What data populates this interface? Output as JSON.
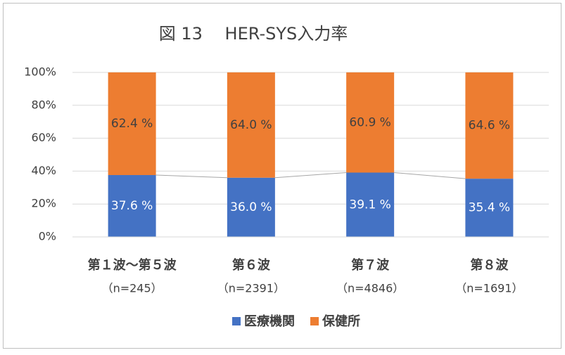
{
  "chart_data": {
    "type": "stacked_bar",
    "title": "図 13　 HER-SYS入力率",
    "categories": [
      [
        "第１波～第５波",
        "（n=245）"
      ],
      [
        "第６波",
        "（n=2391）"
      ],
      [
        "第７波",
        "（n=4846）"
      ],
      [
        "第８波",
        "（n=1691）"
      ]
    ],
    "series": [
      {
        "name": "医療機関",
        "color": "#4472c4",
        "values": [
          37.6,
          36.0,
          39.1,
          35.4
        ],
        "value_labels": [
          "37.6 %",
          "36.0 %",
          "39.1 %",
          "35.4 %"
        ]
      },
      {
        "name": "保健所",
        "color": "#ed7d31",
        "values": [
          62.4,
          64.0,
          60.9,
          64.6
        ],
        "value_labels": [
          "62.4 %",
          "64.0 %",
          "60.9 %",
          "64.6 %"
        ]
      }
    ],
    "ylim": [
      0,
      100
    ],
    "yticks": [
      {
        "value": 0,
        "label": "0%"
      },
      {
        "value": 20,
        "label": "20%"
      },
      {
        "value": 40,
        "label": "40%"
      },
      {
        "value": 60,
        "label": "60%"
      },
      {
        "value": 80,
        "label": "80%"
      },
      {
        "value": 100,
        "label": "100%"
      }
    ],
    "grid": true,
    "series_lines": true,
    "legend": "bottom"
  }
}
